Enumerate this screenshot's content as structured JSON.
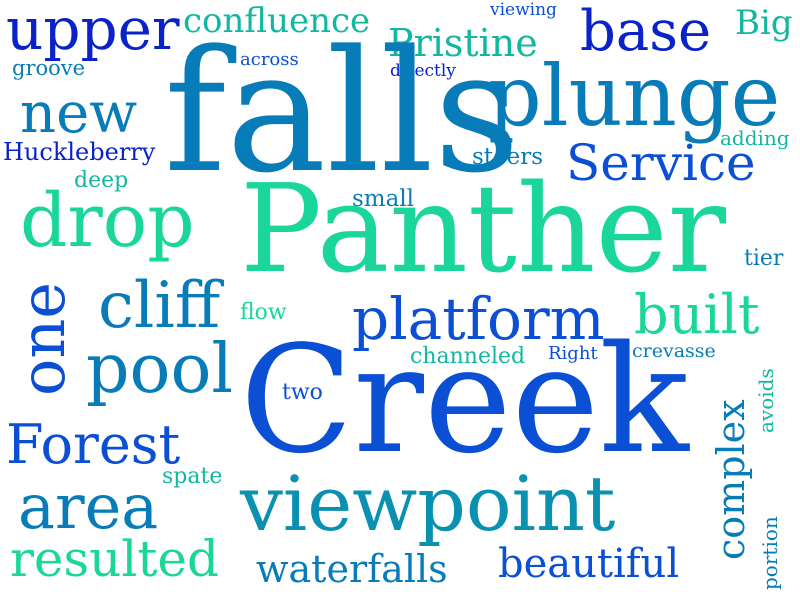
{
  "word_cloud": {
    "background": "#ffffff",
    "palette": [
      "#0a22c8",
      "#0b4fd4",
      "#087cb8",
      "#0a90b0",
      "#12b7a0",
      "#1bd69a",
      "#2b3fd8"
    ],
    "words": [
      "upper",
      "confluence",
      "viewing",
      "base",
      "Big",
      "Pristine",
      "groove",
      "across",
      "directly",
      "falls",
      "plunge",
      "new",
      "adding",
      "Huckleberry",
      "steers",
      "Service",
      "deep",
      "small",
      "drop",
      "Panther",
      "tier",
      "one",
      "cliff",
      "flow",
      "platform",
      "built",
      "channeled",
      "Right",
      "crevasse",
      "avoids",
      "pool",
      "two",
      "Creek",
      "Forest",
      "complex",
      "spate",
      "area",
      "viewpoint",
      "portion",
      "resulted",
      "waterfalls",
      "beautiful"
    ]
  }
}
